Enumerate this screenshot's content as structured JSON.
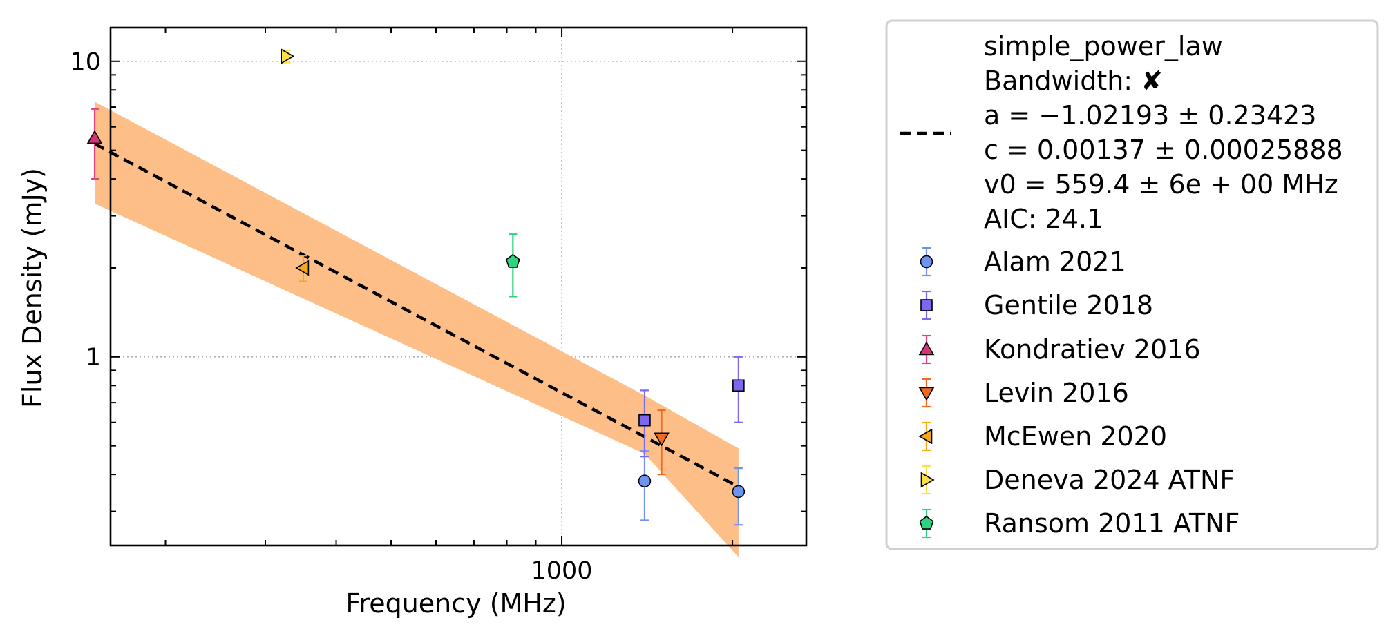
{
  "chart_data": {
    "type": "scatter",
    "xlabel": "Frequency (MHz)",
    "ylabel": "Flux Density (mJy)",
    "xscale": "log",
    "yscale": "log",
    "xlim": [
      160,
      2700
    ],
    "ylim": [
      0.23,
      13
    ],
    "xticks": [
      1000
    ],
    "xtick_labels": [
      "1000"
    ],
    "yticks": [
      1,
      10
    ],
    "ytick_labels": [
      "1",
      "10"
    ],
    "grid": true,
    "legend_position": "outside-right",
    "fit": {
      "model": "simple_power_law",
      "label_lines": [
        "simple_power_law",
        "Bandwidth: ✘",
        "a = −1.02193 ± 0.23423",
        "c = 0.00137 ± 0.00025888",
        "v0 = 559.4 ± 6e + 00 MHz",
        "AIC: 24.1"
      ],
      "a": -1.02193,
      "c": 0.00137,
      "v0": 559.4,
      "x_range": [
        150,
        2050
      ],
      "band": [
        {
          "x": 150,
          "lo": 3.3,
          "hi": 7.3
        },
        {
          "x": 1400,
          "lo": 0.47,
          "hi": 0.74
        },
        {
          "x": 2050,
          "lo": 0.21,
          "hi": 0.49
        }
      ],
      "line_color": "#000000",
      "band_color": "#fdbf87"
    },
    "series": [
      {
        "name": "Alam 2021",
        "marker": "circle",
        "color": "#6f94ef",
        "ecolor": "#6f94ef",
        "points": [
          {
            "x": 1400,
            "y": 0.38,
            "ylo": 0.28,
            "yhi": 0.48
          },
          {
            "x": 2050,
            "y": 0.35,
            "ylo": 0.27,
            "yhi": 0.42
          }
        ]
      },
      {
        "name": "Gentile 2018",
        "marker": "square",
        "color": "#7b68ee",
        "ecolor": "#7b68ee",
        "points": [
          {
            "x": 1400,
            "y": 0.61,
            "ylo": 0.46,
            "yhi": 0.77
          },
          {
            "x": 2050,
            "y": 0.8,
            "ylo": 0.6,
            "yhi": 1.0
          }
        ]
      },
      {
        "name": "Kondratiev 2016",
        "marker": "triangle-up",
        "color": "#d6337a",
        "ecolor": "#e8407f",
        "points": [
          {
            "x": 150,
            "y": 5.5,
            "ylo": 4.0,
            "yhi": 6.9
          }
        ]
      },
      {
        "name": "Levin 2016",
        "marker": "triangle-down",
        "color": "#f26a21",
        "ecolor": "#f26a21",
        "points": [
          {
            "x": 1500,
            "y": 0.53,
            "ylo": 0.4,
            "yhi": 0.66
          }
        ]
      },
      {
        "name": "McEwen 2020",
        "marker": "triangle-left",
        "color": "#f6a817",
        "ecolor": "#f6a817",
        "points": [
          {
            "x": 350,
            "y": 2.0,
            "ylo": 1.8,
            "yhi": 2.2
          }
        ]
      },
      {
        "name": "Deneva 2024 ATNF",
        "marker": "triangle-right",
        "color": "#fce047",
        "ecolor": "#fce047",
        "points": [
          {
            "x": 327,
            "y": 10.4,
            "ylo": 9.9,
            "yhi": 10.9
          }
        ]
      },
      {
        "name": "Ransom 2011 ATNF",
        "marker": "pentagon",
        "color": "#2dd37e",
        "ecolor": "#2dd37e",
        "points": [
          {
            "x": 820,
            "y": 2.1,
            "ylo": 1.6,
            "yhi": 2.6
          }
        ]
      }
    ]
  }
}
